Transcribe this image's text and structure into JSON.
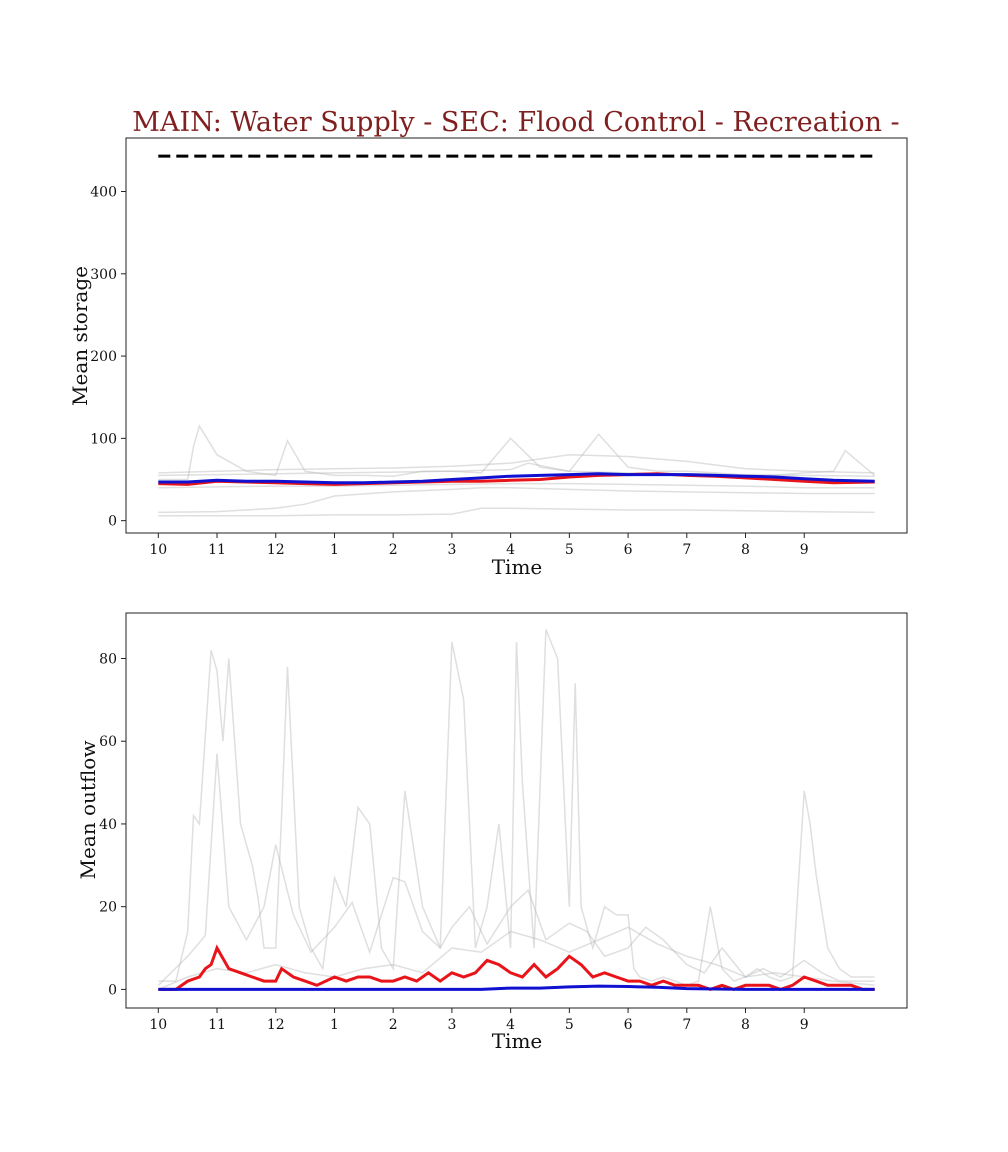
{
  "figure": {
    "title": "MAIN: Water Supply - SEC: Flood Control - Recreation -",
    "title_color": "#7f1f1f"
  },
  "chart_data": [
    {
      "type": "line",
      "xlabel": "Time",
      "ylabel": "Mean storage",
      "x_tick_labels": [
        "10",
        "11",
        "12",
        "1",
        "2",
        "3",
        "4",
        "5",
        "6",
        "7",
        "8",
        "9"
      ],
      "x_ticks": [
        0,
        1,
        2,
        3,
        4,
        5,
        6,
        7,
        8,
        9,
        10,
        11
      ],
      "x_range": [
        -0.55,
        12.75
      ],
      "ylim": [
        -15,
        465
      ],
      "y_ticks": [
        0,
        100,
        200,
        300,
        400
      ],
      "reference_line": {
        "style": "dashed",
        "color": "#000000",
        "x": [
          0,
          12.2
        ],
        "y": [
          443,
          443
        ]
      },
      "series": [
        {
          "color": "#e8141a",
          "x": [
            0,
            0.5,
            1,
            1.5,
            2,
            2.5,
            3,
            3.5,
            4,
            4.5,
            5,
            5.5,
            6,
            6.5,
            7,
            7.5,
            8,
            8.5,
            9,
            9.5,
            10,
            10.5,
            11,
            11.5,
            12.2
          ],
          "values": [
            45,
            44,
            48,
            47,
            46,
            45,
            44,
            45,
            46,
            47,
            48,
            48,
            49,
            50,
            53,
            55,
            56,
            57,
            55,
            54,
            52,
            50,
            48,
            46,
            47
          ]
        },
        {
          "color": "#1010d0",
          "x": [
            0,
            0.5,
            1,
            1.5,
            2,
            2.5,
            3,
            3.5,
            4,
            4.5,
            5,
            5.5,
            6,
            6.5,
            7,
            7.5,
            8,
            8.5,
            9,
            9.5,
            10,
            10.5,
            11,
            11.5,
            12.2
          ],
          "values": [
            47,
            47,
            49,
            48,
            48,
            47,
            46,
            46,
            47,
            48,
            50,
            52,
            54,
            55,
            56,
            57,
            56,
            56,
            56,
            55,
            54,
            53,
            51,
            49,
            48
          ]
        },
        {
          "color": "#b8b8b8",
          "x": [
            0,
            0.5,
            0.6,
            0.7,
            1,
            1.5,
            2,
            2.2,
            2.5,
            3,
            3.5,
            4,
            4.5,
            5,
            5.5,
            6,
            6.5,
            7,
            7.5,
            8,
            8.5,
            9,
            9.5,
            10,
            10.5,
            11,
            11.5,
            11.7,
            12.2
          ],
          "values": [
            50,
            50,
            90,
            115,
            80,
            60,
            55,
            97,
            60,
            55,
            55,
            54,
            60,
            60,
            58,
            100,
            65,
            60,
            105,
            65,
            60,
            60,
            58,
            55,
            55,
            58,
            60,
            85,
            55
          ]
        },
        {
          "color": "#b8b8b8",
          "x": [
            0,
            1,
            2,
            3,
            4,
            5,
            6,
            7,
            8,
            9,
            10,
            11,
            12.2
          ],
          "values": [
            58,
            60,
            62,
            63,
            64,
            66,
            70,
            80,
            78,
            72,
            63,
            60,
            58
          ]
        },
        {
          "color": "#b8b8b8",
          "x": [
            0,
            1,
            2,
            3,
            4,
            5,
            6,
            7,
            8,
            9,
            10,
            11,
            12.2
          ],
          "values": [
            40,
            41,
            42,
            42,
            43,
            44,
            45,
            45,
            44,
            43,
            42,
            40,
            40
          ]
        },
        {
          "color": "#b8b8b8",
          "x": [
            0,
            1,
            2,
            2.5,
            3,
            4,
            5,
            5.5,
            6,
            7,
            8,
            9,
            10,
            11,
            12.2
          ],
          "values": [
            10,
            11,
            15,
            20,
            30,
            35,
            38,
            40,
            40,
            38,
            36,
            35,
            34,
            33,
            33
          ]
        },
        {
          "color": "#b8b8b8",
          "x": [
            0,
            1,
            2,
            3,
            4,
            5,
            5.5,
            6,
            7,
            8,
            9,
            10,
            11,
            12.2
          ],
          "values": [
            6,
            6,
            6,
            7,
            7,
            8,
            15,
            15,
            14,
            13,
            13,
            12,
            11,
            10
          ]
        },
        {
          "color": "#b8b8b8",
          "x": [
            0,
            1,
            2,
            3,
            4,
            5,
            6,
            6.3,
            7,
            8,
            9,
            10,
            11,
            12.2
          ],
          "values": [
            55,
            56,
            57,
            58,
            59,
            60,
            62,
            70,
            60,
            58,
            57,
            56,
            55,
            54
          ]
        }
      ]
    },
    {
      "type": "line",
      "xlabel": "Time",
      "ylabel": "Mean outflow",
      "x_tick_labels": [
        "10",
        "11",
        "12",
        "1",
        "2",
        "3",
        "4",
        "5",
        "6",
        "7",
        "8",
        "9"
      ],
      "x_ticks": [
        0,
        1,
        2,
        3,
        4,
        5,
        6,
        7,
        8,
        9,
        10,
        11
      ],
      "x_range": [
        -0.55,
        12.75
      ],
      "ylim": [
        -4.5,
        91
      ],
      "y_ticks": [
        0,
        20,
        40,
        60,
        80
      ],
      "series": [
        {
          "color": "#e8141a",
          "x": [
            0,
            0.3,
            0.5,
            0.7,
            0.8,
            0.9,
            1.0,
            1.2,
            1.4,
            1.6,
            1.8,
            2.0,
            2.1,
            2.3,
            2.5,
            2.7,
            3.0,
            3.2,
            3.4,
            3.6,
            3.8,
            4.0,
            4.2,
            4.4,
            4.6,
            4.8,
            5.0,
            5.2,
            5.4,
            5.6,
            5.8,
            6.0,
            6.2,
            6.4,
            6.6,
            6.8,
            7.0,
            7.2,
            7.4,
            7.6,
            7.8,
            8.0,
            8.2,
            8.4,
            8.6,
            8.8,
            9.0,
            9.2,
            9.4,
            9.6,
            9.8,
            10.0,
            10.2,
            10.4,
            10.6,
            10.8,
            11.0,
            11.2,
            11.4,
            11.6,
            11.8,
            12.0,
            12.2
          ],
          "values": [
            0,
            0,
            2,
            3,
            5,
            6,
            10,
            5,
            4,
            3,
            2,
            2,
            5,
            3,
            2,
            1,
            3,
            2,
            3,
            3,
            2,
            2,
            3,
            2,
            4,
            2,
            4,
            3,
            4,
            7,
            6,
            4,
            3,
            6,
            3,
            5,
            8,
            6,
            3,
            4,
            3,
            2,
            2,
            1,
            2,
            1,
            1,
            1,
            0,
            1,
            0,
            1,
            1,
            1,
            0,
            1,
            3,
            2,
            1,
            1,
            1,
            0,
            0
          ]
        },
        {
          "color": "#1010d0",
          "x": [
            0,
            1,
            2,
            3,
            4,
            5,
            5.5,
            6,
            6.5,
            7,
            7.5,
            8,
            8.5,
            9,
            10,
            11,
            12.2
          ],
          "values": [
            0,
            0,
            0,
            0,
            0,
            0,
            0,
            0.3,
            0.3,
            0.6,
            0.8,
            0.7,
            0.5,
            0.2,
            0,
            0,
            0
          ]
        },
        {
          "color": "#b8b8b8",
          "x": [
            0,
            0.3,
            0.5,
            0.6,
            0.7,
            0.9,
            1.0,
            1.1,
            1.2,
            1.4,
            1.6,
            1.7,
            1.8,
            2.0,
            2.1,
            2.2,
            2.4,
            2.6,
            2.8,
            3.0,
            3.2,
            3.4,
            3.6,
            3.8,
            4.0,
            4.2,
            4.5,
            4.8,
            5.0,
            5.2,
            5.4,
            5.6,
            5.8,
            6.0,
            6.1,
            6.2,
            6.4,
            6.6,
            6.8,
            7.0,
            7.1,
            7.2,
            7.4,
            7.6,
            7.8,
            8.0,
            8.1,
            8.2,
            8.4,
            8.6,
            8.8,
            9.0,
            9.2,
            9.4,
            9.6,
            9.8,
            10.0,
            10.2,
            10.4,
            10.6,
            10.8,
            11.0,
            11.1,
            11.2,
            11.4,
            11.6,
            11.8,
            12.0,
            12.2
          ],
          "values": [
            2,
            2,
            14,
            42,
            40,
            82,
            77,
            60,
            80,
            40,
            30,
            22,
            10,
            10,
            42,
            78,
            20,
            10,
            5,
            27,
            20,
            44,
            40,
            10,
            5,
            48,
            20,
            10,
            84,
            70,
            10,
            20,
            40,
            10,
            84,
            50,
            10,
            87,
            80,
            20,
            74,
            20,
            10,
            20,
            18,
            18,
            5,
            3,
            2,
            3,
            2,
            1,
            2,
            20,
            5,
            2,
            3,
            5,
            3,
            2,
            3,
            48,
            40,
            28,
            10,
            5,
            3,
            3,
            3
          ]
        },
        {
          "color": "#b8b8b8",
          "x": [
            0,
            0.5,
            0.8,
            1.0,
            1.2,
            1.5,
            1.8,
            2.0,
            2.3,
            2.6,
            3.0,
            3.3,
            3.6,
            4.0,
            4.2,
            4.5,
            4.8,
            5.0,
            5.3,
            5.6,
            6.0,
            6.3,
            6.6,
            7.0,
            7.3,
            7.6,
            8.0,
            8.3,
            8.6,
            9.0,
            9.3,
            9.6,
            10.0,
            10.3,
            10.6,
            11.0,
            11.3,
            11.6,
            12.0,
            12.2
          ],
          "values": [
            1,
            8,
            13,
            57,
            20,
            12,
            20,
            35,
            18,
            9,
            15,
            21,
            9,
            27,
            26,
            14,
            10,
            15,
            20,
            11,
            20,
            24,
            12,
            16,
            14,
            8,
            10,
            15,
            12,
            6,
            4,
            10,
            3,
            5,
            3,
            7,
            4,
            2,
            2,
            2
          ]
        },
        {
          "color": "#b8b8b8",
          "x": [
            0,
            0.5,
            1.0,
            1.5,
            2.0,
            2.5,
            3.0,
            3.5,
            4.0,
            4.5,
            5.0,
            5.5,
            6.0,
            6.5,
            7.0,
            7.5,
            8.0,
            8.5,
            9.0,
            9.5,
            10.0,
            10.5,
            11.0,
            11.5,
            12.2
          ],
          "values": [
            0,
            3,
            5,
            4,
            6,
            4,
            3,
            5,
            6,
            4,
            10,
            9,
            14,
            12,
            9,
            12,
            15,
            11,
            8,
            6,
            3,
            4,
            3,
            2,
            1
          ]
        }
      ]
    }
  ]
}
